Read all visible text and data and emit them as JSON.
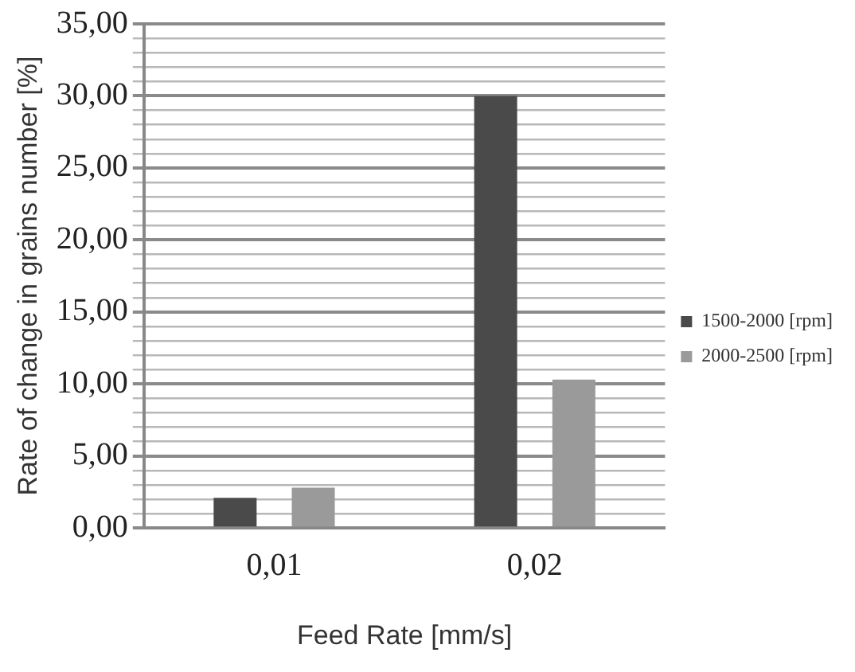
{
  "chart_data": {
    "type": "bar",
    "xlabel": "Feed Rate [mm/s]",
    "ylabel": "Rate of change in grains number [%]",
    "categories": [
      "0,01",
      "0,02"
    ],
    "series": [
      {
        "name": "1500-2000 [rpm]",
        "color": "#4a4a4a",
        "values": [
          2.1,
          30
        ]
      },
      {
        "name": "2000-2500 [rpm]",
        "color": "#9a9a9a",
        "values": [
          2.8,
          10.3
        ]
      }
    ],
    "ylim": [
      0,
      35
    ],
    "yticks": [
      {
        "value": 0,
        "label": "0,00"
      },
      {
        "value": 1,
        "label": null
      },
      {
        "value": 2,
        "label": null
      },
      {
        "value": 3,
        "label": null
      },
      {
        "value": 4,
        "label": null
      },
      {
        "value": 5,
        "label": "5,00"
      },
      {
        "value": 6,
        "label": null
      },
      {
        "value": 7,
        "label": null
      },
      {
        "value": 8,
        "label": null
      },
      {
        "value": 9,
        "label": null
      },
      {
        "value": 10,
        "label": "10,00"
      },
      {
        "value": 11,
        "label": null
      },
      {
        "value": 12,
        "label": null
      },
      {
        "value": 13,
        "label": null
      },
      {
        "value": 14,
        "label": null
      },
      {
        "value": 15,
        "label": "15,00"
      },
      {
        "value": 16,
        "label": null
      },
      {
        "value": 17,
        "label": null
      },
      {
        "value": 18,
        "label": null
      },
      {
        "value": 19,
        "label": null
      },
      {
        "value": 20,
        "label": "20,00"
      },
      {
        "value": 21,
        "label": null
      },
      {
        "value": 22,
        "label": null
      },
      {
        "value": 23,
        "label": null
      },
      {
        "value": 24,
        "label": null
      },
      {
        "value": 25,
        "label": "25,00"
      },
      {
        "value": 26,
        "label": null
      },
      {
        "value": 27,
        "label": null
      },
      {
        "value": 28,
        "label": null
      },
      {
        "value": 29,
        "label": null
      },
      {
        "value": 30,
        "label": "30,00"
      },
      {
        "value": 31,
        "label": null
      },
      {
        "value": 32,
        "label": null
      },
      {
        "value": 33,
        "label": null
      },
      {
        "value": 34,
        "label": null
      },
      {
        "value": 35,
        "label": "35,00"
      }
    ],
    "grid": "y",
    "legend": "right"
  }
}
